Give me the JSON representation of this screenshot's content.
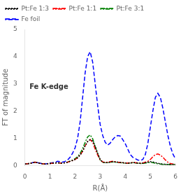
{
  "chart_data": {
    "type": "line",
    "xlabel": "R(Å)",
    "ylabel": "FT of magnitude",
    "annotation": "Fe K-edge",
    "xlim": [
      0,
      6
    ],
    "ylim": [
      0,
      5
    ],
    "xticks": [
      0,
      1,
      2,
      3,
      4,
      5,
      6
    ],
    "yticks": [
      0,
      1,
      2,
      3,
      4,
      5
    ],
    "grid": false,
    "legend": "upper left",
    "x": [
      0.0,
      0.1,
      0.2,
      0.3,
      0.4,
      0.5,
      0.6,
      0.7,
      0.8,
      0.9,
      1.0,
      1.1,
      1.2,
      1.3,
      1.4,
      1.5,
      1.6,
      1.7,
      1.8,
      1.9,
      2.0,
      2.1,
      2.2,
      2.3,
      2.4,
      2.5,
      2.6,
      2.7,
      2.8,
      2.9,
      3.0,
      3.1,
      3.2,
      3.3,
      3.4,
      3.5,
      3.6,
      3.7,
      3.8,
      3.9,
      4.0,
      4.1,
      4.2,
      4.3,
      4.4,
      4.5,
      4.6,
      4.7,
      4.8,
      4.9,
      5.0,
      5.1,
      5.2,
      5.3,
      5.4,
      5.5,
      5.6,
      5.7,
      5.8,
      5.9,
      6.0
    ],
    "series": [
      {
        "name": "Pt:Fe 1:3",
        "color": "black",
        "line_style": "dotted",
        "values": [
          0.05,
          0.06,
          0.07,
          0.1,
          0.12,
          0.1,
          0.08,
          0.06,
          0.05,
          0.06,
          0.07,
          0.08,
          0.09,
          0.1,
          0.09,
          0.08,
          0.1,
          0.12,
          0.15,
          0.18,
          0.22,
          0.28,
          0.38,
          0.52,
          0.72,
          0.88,
          0.95,
          0.9,
          0.7,
          0.45,
          0.22,
          0.12,
          0.1,
          0.1,
          0.12,
          0.14,
          0.13,
          0.12,
          0.11,
          0.1,
          0.09,
          0.08,
          0.09,
          0.1,
          0.1,
          0.09,
          0.08,
          0.08,
          0.1,
          0.12,
          0.14,
          0.13,
          0.1,
          0.08,
          0.06,
          0.05,
          0.04,
          0.04,
          0.04,
          0.04,
          0.04
        ]
      },
      {
        "name": "Pt:Fe 1:1",
        "color": "red",
        "line_style": "dashdot",
        "values": [
          0.05,
          0.06,
          0.07,
          0.1,
          0.12,
          0.1,
          0.08,
          0.06,
          0.05,
          0.06,
          0.07,
          0.08,
          0.09,
          0.1,
          0.09,
          0.08,
          0.1,
          0.12,
          0.15,
          0.18,
          0.22,
          0.28,
          0.38,
          0.52,
          0.72,
          0.88,
          0.95,
          0.85,
          0.6,
          0.38,
          0.2,
          0.13,
          0.11,
          0.12,
          0.14,
          0.15,
          0.14,
          0.12,
          0.11,
          0.1,
          0.09,
          0.09,
          0.1,
          0.11,
          0.1,
          0.09,
          0.08,
          0.09,
          0.12,
          0.15,
          0.22,
          0.32,
          0.4,
          0.42,
          0.38,
          0.3,
          0.2,
          0.12,
          0.07,
          0.05,
          0.04
        ]
      },
      {
        "name": "Pt:Fe 3:1",
        "color": "green",
        "line_style": "dashdot",
        "values": [
          0.05,
          0.06,
          0.07,
          0.1,
          0.12,
          0.1,
          0.08,
          0.06,
          0.05,
          0.06,
          0.07,
          0.08,
          0.09,
          0.1,
          0.09,
          0.08,
          0.1,
          0.12,
          0.16,
          0.2,
          0.25,
          0.32,
          0.44,
          0.62,
          0.85,
          1.05,
          1.12,
          0.98,
          0.7,
          0.42,
          0.2,
          0.12,
          0.1,
          0.1,
          0.12,
          0.13,
          0.12,
          0.11,
          0.1,
          0.09,
          0.08,
          0.08,
          0.09,
          0.1,
          0.09,
          0.08,
          0.07,
          0.07,
          0.09,
          0.1,
          0.12,
          0.1,
          0.08,
          0.06,
          0.05,
          0.04,
          0.04,
          0.04,
          0.04,
          0.04,
          0.04
        ]
      },
      {
        "name": "Fe foil",
        "color": "blue",
        "line_style": "dashed",
        "values": [
          0.05,
          0.06,
          0.08,
          0.1,
          0.12,
          0.1,
          0.08,
          0.06,
          0.05,
          0.07,
          0.09,
          0.1,
          0.12,
          0.15,
          0.14,
          0.12,
          0.15,
          0.2,
          0.3,
          0.45,
          0.65,
          1.0,
          1.6,
          2.5,
          3.4,
          4.0,
          4.18,
          3.8,
          3.0,
          2.2,
          1.5,
          1.1,
          0.85,
          0.75,
          0.82,
          0.95,
          1.05,
          1.1,
          1.08,
          0.95,
          0.8,
          0.6,
          0.4,
          0.3,
          0.25,
          0.2,
          0.18,
          0.22,
          0.4,
          0.8,
          1.4,
          2.0,
          2.5,
          2.65,
          2.5,
          2.1,
          1.6,
          1.1,
          0.7,
          0.42,
          0.25
        ]
      }
    ]
  }
}
